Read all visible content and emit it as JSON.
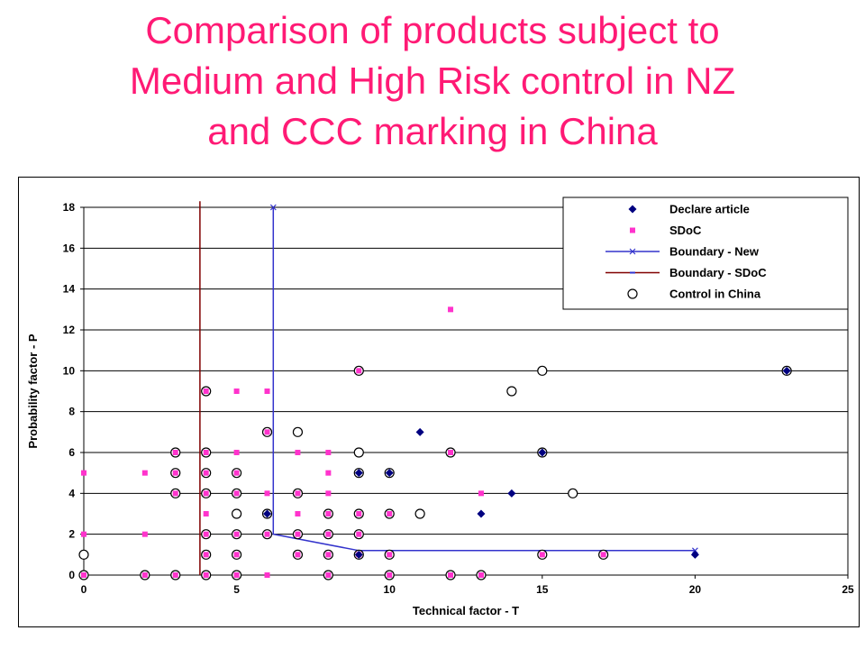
{
  "title_lines": [
    "Comparison of products subject to",
    "Medium and High Risk control in NZ",
    "and CCC marking in China"
  ],
  "colors": {
    "title": "#ff1a75",
    "declare": "#000080",
    "sdoc": "#ff33cc",
    "boundary_new": "#3333cc",
    "boundary_sdoc": "#800000",
    "china": "#000000",
    "grid": "#000000"
  },
  "chart_data": {
    "type": "scatter",
    "title": "",
    "xlabel": "Technical factor - T",
    "ylabel": "Probability  factor - P",
    "xlim": [
      0,
      25
    ],
    "ylim": [
      0,
      18
    ],
    "xticks": [
      0,
      5,
      10,
      15,
      20,
      25
    ],
    "yticks": [
      0,
      2,
      4,
      6,
      8,
      10,
      12,
      14,
      16,
      18
    ],
    "grid": "horizontal",
    "legend_position": "top-right",
    "series": [
      {
        "name": "Declare article",
        "marker": "diamond",
        "points": [
          [
            6,
            3
          ],
          [
            9,
            5
          ],
          [
            10,
            5
          ],
          [
            11,
            7
          ],
          [
            13,
            3
          ],
          [
            14,
            4
          ],
          [
            15,
            6
          ],
          [
            20,
            1
          ],
          [
            23,
            10
          ],
          [
            9,
            1
          ]
        ]
      },
      {
        "name": "SDoC",
        "marker": "square",
        "points": [
          [
            0,
            0
          ],
          [
            0,
            2
          ],
          [
            0,
            5
          ],
          [
            2,
            0
          ],
          [
            2,
            2
          ],
          [
            2,
            5
          ],
          [
            3,
            0
          ],
          [
            3,
            4
          ],
          [
            3,
            5
          ],
          [
            3,
            6
          ],
          [
            4,
            0
          ],
          [
            4,
            1
          ],
          [
            4,
            2
          ],
          [
            4,
            3
          ],
          [
            4,
            4
          ],
          [
            4,
            5
          ],
          [
            4,
            6
          ],
          [
            4,
            9
          ],
          [
            5,
            0
          ],
          [
            5,
            1
          ],
          [
            5,
            2
          ],
          [
            5,
            4
          ],
          [
            5,
            5
          ],
          [
            5,
            6
          ],
          [
            5,
            9
          ],
          [
            6,
            0
          ],
          [
            6,
            2
          ],
          [
            6,
            4
          ],
          [
            6,
            7
          ],
          [
            6,
            9
          ],
          [
            7,
            1
          ],
          [
            7,
            2
          ],
          [
            7,
            3
          ],
          [
            7,
            4
          ],
          [
            7,
            6
          ],
          [
            8,
            0
          ],
          [
            8,
            1
          ],
          [
            8,
            2
          ],
          [
            8,
            3
          ],
          [
            8,
            4
          ],
          [
            8,
            5
          ],
          [
            8,
            6
          ],
          [
            9,
            1
          ],
          [
            9,
            2
          ],
          [
            9,
            3
          ],
          [
            9,
            10
          ],
          [
            10,
            0
          ],
          [
            10,
            1
          ],
          [
            10,
            3
          ],
          [
            12,
            0
          ],
          [
            12,
            6
          ],
          [
            12,
            13
          ],
          [
            13,
            0
          ],
          [
            13,
            4
          ],
          [
            15,
            1
          ],
          [
            17,
            1
          ]
        ]
      },
      {
        "name": "Boundary - New",
        "marker": "x",
        "line": true,
        "points": [
          [
            6.2,
            18
          ],
          [
            6.2,
            2
          ],
          [
            9,
            1.2
          ],
          [
            20,
            1.2
          ]
        ]
      },
      {
        "name": "Boundary - SDoC",
        "marker": "dash",
        "line": true,
        "points": [
          [
            3.8,
            0
          ],
          [
            3.8,
            18.3
          ]
        ]
      },
      {
        "name": "Control in China",
        "marker": "circle",
        "points": [
          [
            0,
            0
          ],
          [
            0,
            1
          ],
          [
            2,
            0
          ],
          [
            3,
            0
          ],
          [
            3,
            4
          ],
          [
            3,
            5
          ],
          [
            3,
            6
          ],
          [
            4,
            0
          ],
          [
            4,
            1
          ],
          [
            4,
            2
          ],
          [
            4,
            4
          ],
          [
            4,
            5
          ],
          [
            4,
            6
          ],
          [
            4,
            9
          ],
          [
            5,
            0
          ],
          [
            5,
            1
          ],
          [
            5,
            2
          ],
          [
            5,
            3
          ],
          [
            5,
            4
          ],
          [
            5,
            5
          ],
          [
            6,
            2
          ],
          [
            6,
            3
          ],
          [
            6,
            7
          ],
          [
            7,
            1
          ],
          [
            7,
            2
          ],
          [
            7,
            4
          ],
          [
            7,
            7
          ],
          [
            8,
            0
          ],
          [
            8,
            1
          ],
          [
            8,
            2
          ],
          [
            8,
            3
          ],
          [
            9,
            1
          ],
          [
            9,
            2
          ],
          [
            9,
            3
          ],
          [
            9,
            5
          ],
          [
            9,
            6
          ],
          [
            9,
            10
          ],
          [
            10,
            0
          ],
          [
            10,
            1
          ],
          [
            10,
            3
          ],
          [
            10,
            5
          ],
          [
            11,
            3
          ],
          [
            12,
            0
          ],
          [
            12,
            6
          ],
          [
            13,
            0
          ],
          [
            14,
            9
          ],
          [
            15,
            1
          ],
          [
            15,
            6
          ],
          [
            15,
            10
          ],
          [
            16,
            4
          ],
          [
            17,
            1
          ],
          [
            23,
            10
          ]
        ]
      }
    ]
  }
}
